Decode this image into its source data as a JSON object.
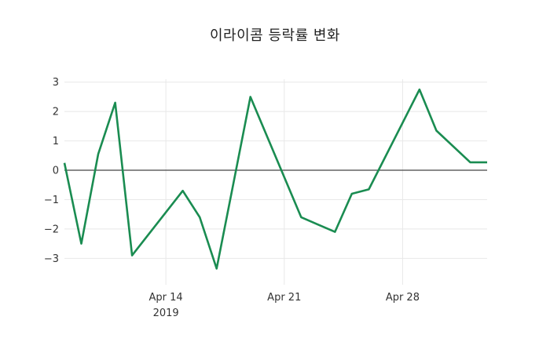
{
  "chart_data": {
    "type": "line",
    "title": "이라이콤 등락률 변화",
    "x": [
      "2019-04-08",
      "2019-04-09",
      "2019-04-10",
      "2019-04-11",
      "2019-04-12",
      "2019-04-15",
      "2019-04-16",
      "2019-04-17",
      "2019-04-18",
      "2019-04-19",
      "2019-04-22",
      "2019-04-23",
      "2019-04-24",
      "2019-04-25",
      "2019-04-26",
      "2019-04-29",
      "2019-04-30",
      "2019-05-02",
      "2019-05-03"
    ],
    "values": [
      0.25,
      -2.5,
      0.55,
      2.3,
      -2.9,
      -0.7,
      -1.6,
      -3.35,
      -0.43,
      2.5,
      -1.6,
      -1.85,
      -2.1,
      -0.8,
      -0.65,
      2.75,
      1.35,
      0.27,
      0.27
    ],
    "xlabel": "",
    "ylabel": "",
    "ylim": [
      -3.9,
      3.1
    ],
    "yticks": [
      3,
      2,
      1,
      0,
      -1,
      -2,
      -3
    ],
    "xticks": [
      {
        "date": "2019-04-14",
        "label": "Apr 14",
        "sublabel": "2019"
      },
      {
        "date": "2019-04-21",
        "label": "Apr 21",
        "sublabel": ""
      },
      {
        "date": "2019-04-28",
        "label": "Apr 28",
        "sublabel": ""
      }
    ],
    "grid": true,
    "legend": "none",
    "zeroline": true,
    "colors": {
      "line": "#1a8c51",
      "gridline": "#e8e8e8",
      "zero_line": "#444444",
      "tick_text": "#333333",
      "title_text": "#222222",
      "background": "#ffffff"
    }
  }
}
